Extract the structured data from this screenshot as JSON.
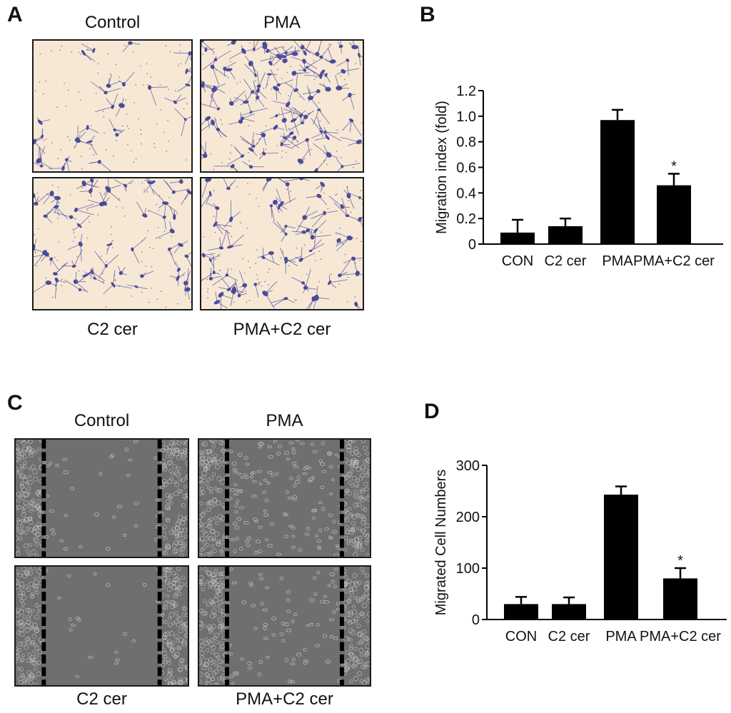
{
  "panels": {
    "a": {
      "letter": "A",
      "captions": {
        "top_left": "Control",
        "top_right": "PMA",
        "bottom_left": "C2 cer",
        "bottom_right": "PMA+C2 cer"
      }
    },
    "b": {
      "letter": "B"
    },
    "c": {
      "letter": "C",
      "captions": {
        "top_left": "Control",
        "top_right": "PMA",
        "bottom_left": "C2 cer",
        "bottom_right": "PMA+C2 cer"
      }
    },
    "d": {
      "letter": "D"
    }
  },
  "colors": {
    "transwell_bg": "#f7e8d6",
    "stain": "#4a4c9a",
    "wound_bg": "#6f6f6f",
    "wound_cells": "#c9c9c9",
    "bar": "#000000"
  },
  "chart_data": [
    {
      "panel": "B",
      "type": "bar",
      "categories": [
        "CON",
        "C2 cer",
        "PMA",
        "PMA+C2 cer"
      ],
      "values": [
        0.09,
        0.14,
        0.97,
        0.46
      ],
      "errors": [
        0.1,
        0.06,
        0.08,
        0.09
      ],
      "significance": [
        "",
        "",
        "",
        "*"
      ],
      "title": "",
      "xlabel": "",
      "ylabel": "Migration index (fold)",
      "ylim": [
        0,
        1.2
      ],
      "yticks": [
        "0",
        "0.2",
        "0.4",
        "0.6",
        "0.8",
        "1.0",
        "1.2"
      ],
      "grid": false
    },
    {
      "panel": "D",
      "type": "bar",
      "categories": [
        "CON",
        "C2 cer",
        "PMA",
        "PMA+C2 cer"
      ],
      "values": [
        30,
        30,
        243,
        80
      ],
      "errors": [
        14,
        13,
        16,
        20
      ],
      "significance": [
        "",
        "",
        "",
        "*"
      ],
      "title": "",
      "xlabel": "",
      "ylabel": "Migrated Cell Numbers",
      "ylim": [
        0,
        300
      ],
      "yticks": [
        "0",
        "100",
        "200",
        "300"
      ],
      "grid": false
    }
  ]
}
